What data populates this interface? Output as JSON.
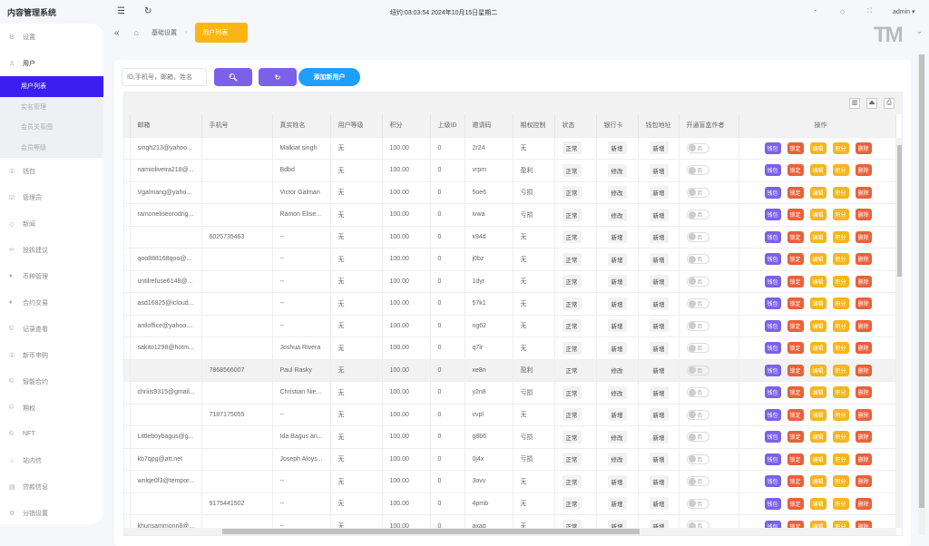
{
  "app": {
    "title": "内容管理系统"
  },
  "header": {
    "clock": "纽约:03:03:54 2024年10月15日星期二",
    "user": "admin",
    "logo": "TM"
  },
  "breadcrumb": {
    "tabs": [
      "基础设置",
      "用户列表"
    ]
  },
  "sidebar": {
    "items": [
      {
        "label": "设置",
        "icon": "gear-icon"
      },
      {
        "label": "用户",
        "icon": "user-icon",
        "children": [
          {
            "label": "用户列表",
            "active": true
          },
          {
            "label": "实名管理"
          },
          {
            "label": "会员关系图"
          },
          {
            "label": "会员等级"
          }
        ]
      },
      {
        "label": "钱包",
        "icon": "coin-icon"
      },
      {
        "label": "管理员",
        "icon": "check-square-icon"
      },
      {
        "label": "新闻",
        "icon": "tag-icon"
      },
      {
        "label": "投拆建议",
        "icon": "link-icon"
      },
      {
        "label": "币种管理",
        "icon": "diamond-icon"
      },
      {
        "label": "合约交易",
        "icon": "diamond-icon"
      },
      {
        "label": "记录查看",
        "icon": "circle-c-icon"
      },
      {
        "label": "新币申购",
        "icon": "coin-icon"
      },
      {
        "label": "智能合约",
        "icon": "circle-c-icon"
      },
      {
        "label": "期权",
        "icon": "circle-c-icon"
      },
      {
        "label": "NFT",
        "icon": "circle-c-icon"
      },
      {
        "label": "站内信",
        "icon": "bell-icon"
      },
      {
        "label": "贷款信息",
        "icon": "document-icon"
      },
      {
        "label": "分销设置",
        "icon": "gear-icon"
      }
    ]
  },
  "toolbar": {
    "search_placeholder": "ID,手机号，邮箱，姓名",
    "add_label": "添加新用户"
  },
  "colors": {
    "primary": "#7b61e8",
    "add": "#1e9fff",
    "active_nav": "#3d1ef0",
    "tab_active": "#fbb614",
    "wallet": "#7b61e8",
    "lock": "#e8613a",
    "edit": "#f5b51c",
    "points": "#f5b51c",
    "delete": "#e8613a"
  },
  "table": {
    "columns": [
      "邮箱",
      "手机号",
      "真实姓名",
      "用户等级",
      "积分",
      "上级ID",
      "邀请码",
      "期权控制",
      "状态",
      "银行卡",
      "钱包地址",
      "开通盲盒作者",
      "操作"
    ],
    "actions": [
      "钱包",
      "锁定",
      "编辑",
      "积分",
      "删除"
    ],
    "switch_label": "否",
    "rows": [
      [
        "singh213@yahoo...",
        "",
        "Malkiat singh",
        "无",
        "100.00",
        "0",
        "2r24",
        "无",
        "正常",
        "新增",
        "新增"
      ],
      [
        "namioliveira218@...",
        "",
        "Bdbd",
        "无",
        "100.00",
        "0",
        "vrpm",
        "盈利",
        "正常",
        "修改",
        "新增"
      ],
      [
        "Vgalmang@yaho...",
        "",
        "Victor Galman",
        "无",
        "100.00",
        "0",
        "5oe6",
        "亏损",
        "正常",
        "修改",
        "新增"
      ],
      [
        "ramoneliseorodrig...",
        "",
        "Ramon Elise...",
        "无",
        "100.00",
        "0",
        "ivwa",
        "亏损",
        "正常",
        "修改",
        "新增"
      ],
      [
        "",
        "6025735463",
        "--",
        "无",
        "100.00",
        "0",
        "x94d",
        "无",
        "正常",
        "新增",
        "新增"
      ],
      [
        "qoo888168qoo@...",
        "",
        "--",
        "无",
        "100.00",
        "0",
        "j0bz",
        "无",
        "正常",
        "新增",
        "新增"
      ],
      [
        "untilrefuse6148@...",
        "",
        "--",
        "无",
        "100.00",
        "0",
        "1dyr",
        "无",
        "正常",
        "新增",
        "新增"
      ],
      [
        "asd16825@icloud...",
        "",
        "--",
        "无",
        "100.00",
        "0",
        "57k1",
        "无",
        "正常",
        "新增",
        "新增"
      ],
      [
        "aniloffice@yahoo....",
        "",
        "--",
        "无",
        "100.00",
        "0",
        "ng62",
        "无",
        "正常",
        "新增",
        "新增"
      ],
      [
        "sakito1298@hotm...",
        "",
        "Joshua Rivera",
        "无",
        "100.00",
        "0",
        "q7lr",
        "无",
        "正常",
        "新增",
        "新增"
      ],
      [
        "",
        "7868566007",
        "Paul Rasky",
        "无",
        "100.00",
        "0",
        "xe8n",
        "盈利",
        "正常",
        "修改",
        "新增"
      ],
      [
        "chriiis9315@gmail...",
        "",
        "Christian Nie...",
        "无",
        "100.00",
        "0",
        "y2n8",
        "亏损",
        "正常",
        "修改",
        "新增"
      ],
      [
        "",
        "7187175055",
        "--",
        "无",
        "100.00",
        "0",
        "vvpl",
        "无",
        "正常",
        "新增",
        "新增"
      ],
      [
        "Littleboybagus@g...",
        "",
        "Ida Bagus an...",
        "无",
        "100.00",
        "0",
        "g8b6",
        "亏损",
        "正常",
        "修改",
        "新增"
      ],
      [
        "kb7qpg@att.net",
        "",
        "Joseph Aloys...",
        "无",
        "100.00",
        "0",
        "0j4x",
        "亏损",
        "正常",
        "修改",
        "新增"
      ],
      [
        "wnlqe0f3@tempor...",
        "",
        "--",
        "无",
        "100.00",
        "0",
        "3ovv",
        "无",
        "正常",
        "新增",
        "新增"
      ],
      [
        "",
        "9175441502",
        "--",
        "无",
        "100.00",
        "0",
        "4pmb",
        "无",
        "正常",
        "新增",
        "新增"
      ],
      [
        "khunsammonn8@...",
        "",
        "--",
        "无",
        "100.00",
        "0",
        "axaq",
        "无",
        "正常",
        "新增",
        "新增"
      ]
    ]
  }
}
